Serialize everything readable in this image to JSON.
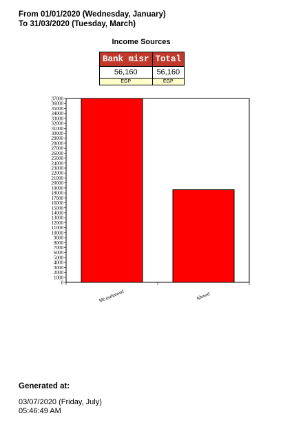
{
  "header": {
    "from_line": "From 01/01/2020 (Wednesday, January)",
    "to_line": "To 31/03/2020 (Tuesday, March)"
  },
  "section_title": "Income Sources",
  "table": {
    "columns": [
      "Bank misr",
      "Total"
    ],
    "values": [
      "56,160",
      "56,160"
    ],
    "currency": [
      "EGP",
      "EGP"
    ],
    "header_color": "#c0392b",
    "currency_bg": "#ffffcc"
  },
  "chart_data": {
    "type": "bar",
    "categories": [
      "Mr.mahmoud",
      "Ahmed"
    ],
    "values": [
      37520,
      18640
    ],
    "ylim": [
      0,
      37000
    ],
    "ytick_step": 1000,
    "bar_color": "#ff0000",
    "title": "",
    "xlabel": "",
    "ylabel": ""
  },
  "footer": {
    "generated_label": "Generated at:",
    "generated_date": "03/07/2020 (Friday, July)",
    "generated_time": "05:46:49 AM"
  }
}
